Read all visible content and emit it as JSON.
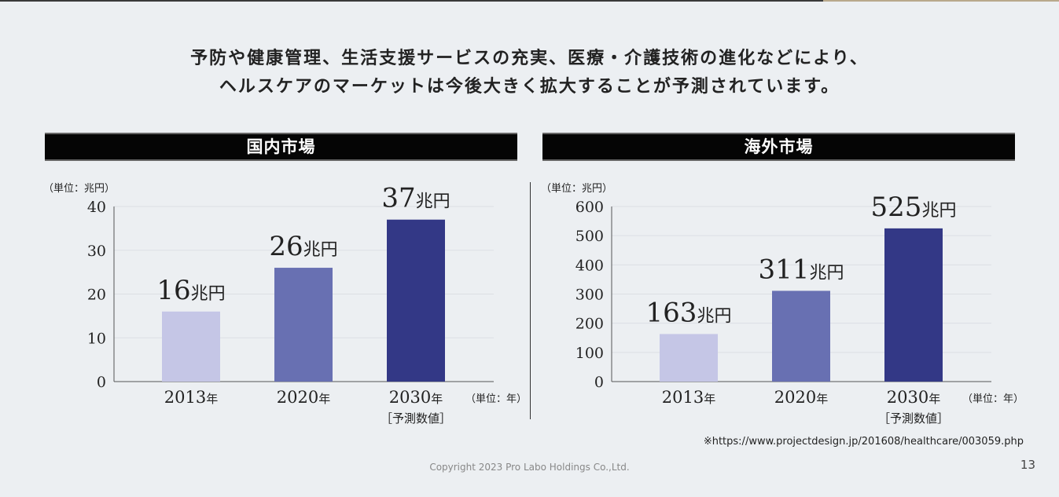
{
  "headline": {
    "line1": "予防や健康管理、生活支援サービスの充実、医療・介護技術の進化などにより、",
    "line2": "ヘルスケアのマーケットは今後大きく拡大することが予測されています。"
  },
  "domestic": {
    "title": "国内市場",
    "unit_value": "（単位：兆円）",
    "unit_year": "（単位：年）"
  },
  "overseas": {
    "title": "海外市場",
    "unit_value": "（単位：兆円）",
    "unit_year": "（単位：年）"
  },
  "colors": {
    "light": "#c5c6e6",
    "mid": "#6870b2",
    "dark": "#333886"
  },
  "chart_data": [
    {
      "type": "bar",
      "title": "国内市場",
      "categories": [
        "2013年",
        "2020年",
        "2030年"
      ],
      "category_notes": [
        "",
        "",
        "［予測数値］"
      ],
      "values": [
        16,
        26,
        37
      ],
      "data_labels": [
        "16兆円",
        "26兆円",
        "37兆円"
      ],
      "bar_colors": [
        "#c5c6e6",
        "#6870b2",
        "#333886"
      ],
      "ylim": [
        0,
        40
      ],
      "yticks": [
        0,
        10,
        20,
        30,
        40
      ],
      "ylabel": "（単位：兆円）",
      "xlabel": "（単位：年）",
      "grid": true
    },
    {
      "type": "bar",
      "title": "海外市場",
      "categories": [
        "2013年",
        "2020年",
        "2030年"
      ],
      "category_notes": [
        "",
        "",
        "［予測数値］"
      ],
      "values": [
        163,
        311,
        525
      ],
      "data_labels": [
        "163兆円",
        "311兆円",
        "525兆円"
      ],
      "bar_colors": [
        "#c5c6e6",
        "#6870b2",
        "#333886"
      ],
      "ylim": [
        0,
        600
      ],
      "yticks": [
        0,
        100,
        200,
        300,
        400,
        500,
        600
      ],
      "ylabel": "（単位：兆円）",
      "xlabel": "（単位：年）",
      "grid": true
    }
  ],
  "footer": {
    "source": "※https://www.projectdesign.jp/201608/healthcare/003059.php",
    "copyright": "Copyright 2023 Pro Labo Holdings Co.,Ltd.",
    "page": "13"
  }
}
